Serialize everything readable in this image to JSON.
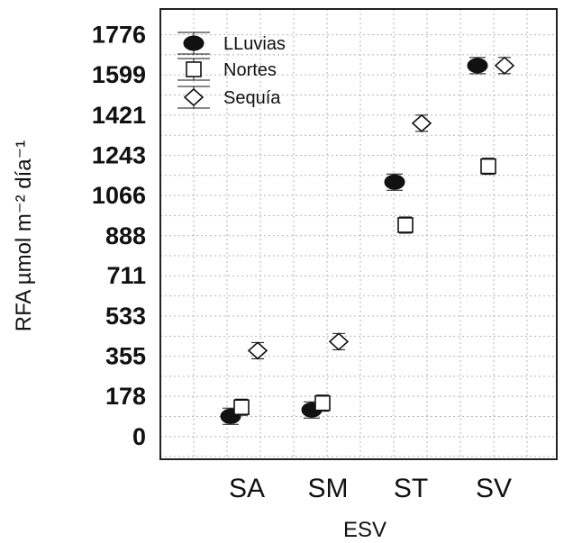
{
  "chart_data": {
    "type": "scatter",
    "title": "",
    "xlabel": "ESV",
    "ylabel": "RFA  µmol m⁻² día⁻¹",
    "categories": [
      "SA",
      "SM",
      "ST",
      "SV"
    ],
    "yticks": [
      "0",
      "178",
      "355",
      "533",
      "711",
      "888",
      "1066",
      "1243",
      "1421",
      "1599",
      "1776"
    ],
    "ylim": [
      -100,
      1890
    ],
    "grid": true,
    "legend_position": "top-left",
    "series": [
      {
        "name": "LLuvias",
        "marker": "filled-circle",
        "color": "#111111",
        "values": [
          90,
          118,
          1125,
          1640
        ]
      },
      {
        "name": "Nortes",
        "marker": "open-square",
        "color": "#111111",
        "values": [
          130,
          148,
          935,
          1195
        ]
      },
      {
        "name": "Sequía",
        "marker": "open-diamond",
        "color": "#111111",
        "values": [
          380,
          420,
          1385,
          1640
        ]
      }
    ]
  }
}
